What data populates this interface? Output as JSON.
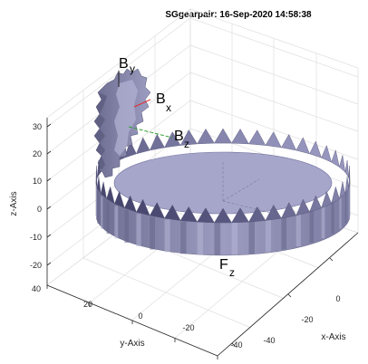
{
  "chart_data": {
    "type": "3d-surface",
    "title": "SGgearpair: 16-Sep-2020 14:58:38",
    "xlabel": "x-Axis",
    "ylabel": "y-Axis",
    "zlabel": "z-Axis",
    "xticks": [
      "-40",
      "-20",
      "0"
    ],
    "yticks": [
      "40",
      "20",
      "0",
      "-20",
      "-40"
    ],
    "zticks": [
      "30",
      "20",
      "10",
      "0",
      "-10",
      "-20"
    ],
    "xlim": [
      -40,
      10
    ],
    "ylim": [
      -40,
      40
    ],
    "zlim": [
      -25,
      35
    ],
    "grid": true,
    "frames": [
      {
        "main": "B",
        "sub": "y"
      },
      {
        "main": "B",
        "sub": "x"
      },
      {
        "main": "B",
        "sub": "z"
      },
      {
        "main": "F",
        "sub": "z"
      }
    ],
    "colors": {
      "gear": "#8f8fb4",
      "gear_top": "#a8a8cc",
      "gear_dark": "#5c5c7e",
      "grid": "#dedede",
      "axis_x": "#e03030",
      "axis_y": "#30a030",
      "axis_z": "#3030e0"
    }
  }
}
